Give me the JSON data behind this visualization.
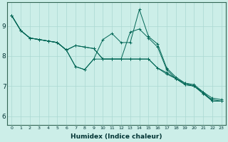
{
  "xlabel": "Humidex (Indice chaleur)",
  "ylabel": "",
  "xlim": [
    -0.5,
    23.5
  ],
  "ylim": [
    5.7,
    9.8
  ],
  "xticks": [
    0,
    1,
    2,
    3,
    4,
    5,
    6,
    7,
    8,
    9,
    10,
    11,
    12,
    13,
    14,
    15,
    16,
    17,
    18,
    19,
    20,
    21,
    22,
    23
  ],
  "yticks": [
    6,
    7,
    8,
    9
  ],
  "bg_color": "#cceee8",
  "grid_color": "#aad8d2",
  "line_color": "#006655",
  "lines": [
    [
      9.35,
      8.85,
      8.6,
      8.55,
      8.5,
      8.45,
      8.2,
      7.65,
      7.55,
      7.9,
      8.55,
      8.75,
      8.45,
      8.45,
      9.55,
      8.65,
      8.4,
      7.6,
      7.3,
      7.1,
      7.0,
      6.8,
      6.5,
      6.5
    ],
    [
      9.35,
      8.85,
      8.6,
      8.55,
      8.5,
      8.45,
      8.2,
      7.65,
      7.55,
      7.9,
      7.9,
      7.9,
      7.9,
      8.8,
      8.9,
      8.6,
      8.3,
      7.55,
      7.25,
      7.05,
      7.0,
      6.75,
      6.5,
      6.5
    ],
    [
      9.35,
      8.85,
      8.6,
      8.55,
      8.5,
      8.45,
      8.2,
      8.35,
      8.3,
      8.25,
      7.9,
      7.9,
      7.9,
      7.9,
      7.9,
      7.9,
      7.6,
      7.4,
      7.25,
      7.05,
      7.0,
      6.75,
      6.55,
      6.5
    ],
    [
      9.35,
      8.85,
      8.6,
      8.55,
      8.5,
      8.45,
      8.2,
      8.35,
      8.3,
      8.25,
      7.9,
      7.9,
      7.9,
      7.9,
      7.9,
      7.9,
      7.6,
      7.45,
      7.25,
      7.1,
      7.05,
      6.8,
      6.6,
      6.55
    ]
  ],
  "figsize": [
    3.2,
    2.0
  ],
  "dpi": 100
}
